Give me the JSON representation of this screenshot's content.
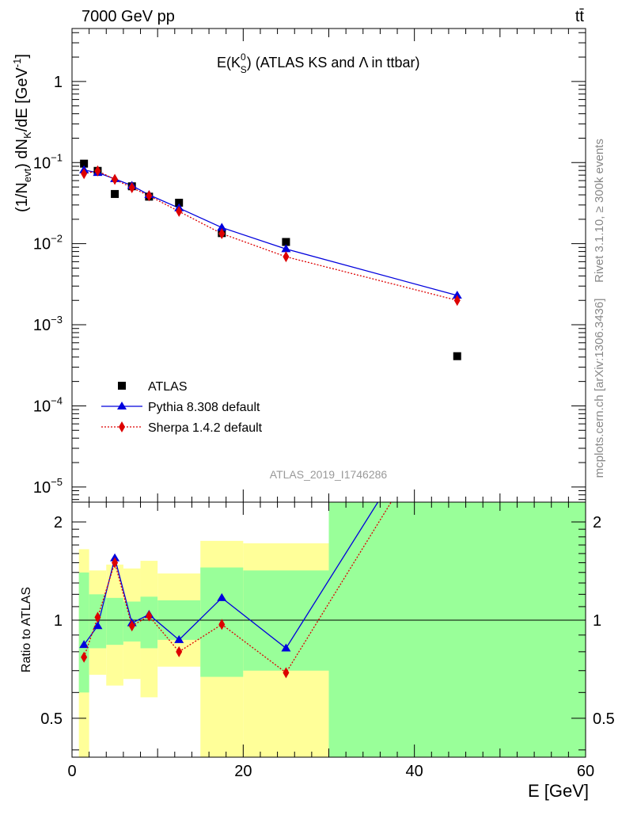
{
  "header": {
    "energy_label": "7000 GeV pp",
    "process_label": "tt̄",
    "plot_title": "E(K",
    "plot_title_sup": "0",
    "plot_title_sub": "S",
    "plot_title_rest": ") (ATLAS KS and Λ in ttbar)"
  },
  "side": {
    "rivet": "Rivet 3.1.10, ≥ 300k events",
    "mcplots": "mcplots.cern.ch [arXiv:1306.3436]"
  },
  "watermark": "ATLAS_2019_I1746286",
  "chart_data": [
    {
      "type": "scatter",
      "panel": "main",
      "title": "E(K0S) (ATLAS KS and Λ in ttbar)",
      "xlabel": "E [GeV]",
      "ylabel": "(1/N_evt) dN_K/dE [GeV^-1]",
      "xlim": [
        0,
        60
      ],
      "ylim": [
        6.5e-06,
        4.5
      ],
      "yscale": "log",
      "yticks": [
        {
          "v": 1,
          "base": "1",
          "exp": ""
        },
        {
          "v": 0.1,
          "base": "10",
          "exp": "−1"
        },
        {
          "v": 0.01,
          "base": "10",
          "exp": "−2"
        },
        {
          "v": 0.001,
          "base": "10",
          "exp": "−3"
        },
        {
          "v": 0.0001,
          "base": "10",
          "exp": "−4"
        },
        {
          "v": 1e-05,
          "base": "10",
          "exp": "−5"
        }
      ],
      "legend_position": "bottom-left",
      "series": [
        {
          "name": "ATLAS",
          "color": "#000000",
          "marker": "square",
          "x": [
            1.4,
            3.0,
            5.0,
            7.0,
            9.0,
            12.5,
            17.5,
            25.0,
            45.0
          ],
          "y": [
            0.097,
            0.079,
            0.041,
            0.051,
            0.038,
            0.032,
            0.0135,
            0.0105,
            0.00041
          ]
        },
        {
          "name": "Pythia 8.308 default",
          "color": "#0000dd",
          "marker": "triangle",
          "line": "solid",
          "x": [
            1.4,
            3.0,
            5.0,
            7.0,
            9.0,
            12.5,
            17.5,
            25.0,
            45.0
          ],
          "y": [
            0.081,
            0.075,
            0.063,
            0.052,
            0.04,
            0.0275,
            0.0158,
            0.0086,
            0.0023
          ]
        },
        {
          "name": "Sherpa 1.4.2 default",
          "color": "#dd0000",
          "marker": "diamond",
          "line": "dotted",
          "x": [
            1.4,
            3.0,
            5.0,
            7.0,
            9.0,
            12.5,
            17.5,
            25.0,
            45.0
          ],
          "y": [
            0.073,
            0.079,
            0.062,
            0.049,
            0.039,
            0.025,
            0.0133,
            0.0069,
            0.002
          ]
        }
      ]
    },
    {
      "type": "line",
      "panel": "ratio",
      "xlabel": "E [GeV]",
      "ylabel": "Ratio to ATLAS",
      "xlim": [
        0,
        60
      ],
      "ylim": [
        0.38,
        2.3
      ],
      "yscale": "log",
      "yticks": [
        0.5,
        1,
        2
      ],
      "xticks": [
        0,
        20,
        40,
        60
      ],
      "reference_line": 1,
      "bands": [
        {
          "x0": 0.8,
          "x1": 2.0,
          "yellow": [
            0.36,
            1.65
          ],
          "green": [
            0.6,
            1.4
          ]
        },
        {
          "x0": 2.0,
          "x1": 4.0,
          "yellow": [
            0.68,
            1.42
          ],
          "green": [
            0.82,
            1.2
          ]
        },
        {
          "x0": 4.0,
          "x1": 6.0,
          "yellow": [
            0.63,
            1.48
          ],
          "green": [
            0.84,
            1.17
          ]
        },
        {
          "x0": 6.0,
          "x1": 8.0,
          "yellow": [
            0.66,
            1.44
          ],
          "green": [
            0.86,
            1.14
          ]
        },
        {
          "x0": 8.0,
          "x1": 10.0,
          "yellow": [
            0.58,
            1.52
          ],
          "green": [
            0.82,
            1.18
          ]
        },
        {
          "x0": 10.0,
          "x1": 15.0,
          "yellow": [
            0.72,
            1.39
          ],
          "green": [
            0.87,
            1.15
          ]
        },
        {
          "x0": 15.0,
          "x1": 20.0,
          "yellow": [
            0.35,
            1.75
          ],
          "green": [
            0.67,
            1.45
          ]
        },
        {
          "x0": 20.0,
          "x1": 30.0,
          "yellow": [
            0.35,
            1.72
          ],
          "green": [
            0.7,
            1.42
          ]
        },
        {
          "x0": 30.0,
          "x1": 60.0,
          "yellow": [
            0.35,
            2.4
          ],
          "green": [
            0.35,
            2.4
          ]
        }
      ],
      "series": [
        {
          "name": "Pythia 8.308 default",
          "color": "#0000dd",
          "marker": "triangle",
          "line": "solid",
          "x": [
            1.4,
            3.0,
            5.0,
            7.0,
            9.0,
            12.5,
            17.5,
            25.0,
            45.0
          ],
          "y": [
            0.84,
            0.96,
            1.55,
            0.98,
            1.04,
            0.87,
            1.17,
            0.82,
            5.6
          ]
        },
        {
          "name": "Sherpa 1.4.2 default",
          "color": "#dd0000",
          "marker": "diamond",
          "line": "dotted",
          "x": [
            1.4,
            3.0,
            5.0,
            7.0,
            9.0,
            12.5,
            17.5,
            25.0,
            45.0
          ],
          "y": [
            0.77,
            1.02,
            1.5,
            0.96,
            1.03,
            0.8,
            0.97,
            0.69,
            4.9
          ]
        }
      ]
    }
  ]
}
